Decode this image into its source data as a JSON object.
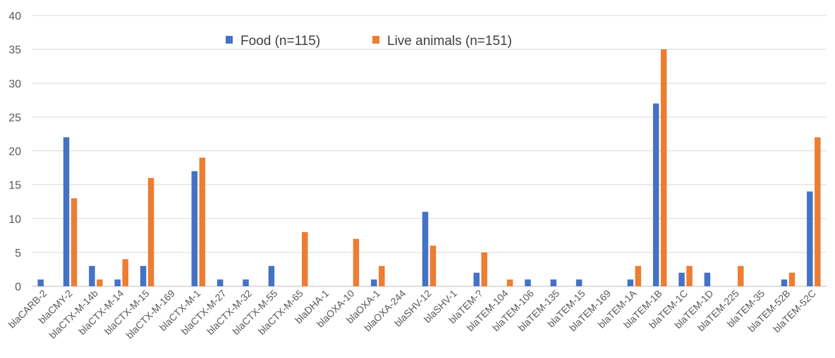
{
  "chart_data": {
    "type": "bar",
    "title": "",
    "xlabel": "",
    "ylabel": "",
    "ylim": [
      0,
      40
    ],
    "yticks": [
      0,
      5,
      10,
      15,
      20,
      25,
      30,
      35,
      40
    ],
    "grid": true,
    "legend_position": "top-center",
    "categories": [
      "blaCARB-2",
      "blaCMY-2",
      "blaCTX-M-14b",
      "blaCTX-M-14",
      "blaCTX-M-15",
      "blaCTX-M-169",
      "blaCTX-M-1",
      "blaCTX-M-27",
      "blaCTX-M-32",
      "blaCTX-M-55",
      "blaCTX-M-65",
      "blaDHA-1",
      "blaOXA-10",
      "blaOXA-1",
      "blaOXA-244",
      "blaSHV-12",
      "blaSHV-1",
      "blaTEM-?",
      "blaTEM-104",
      "blaTEM-106",
      "blaTEM-135",
      "blaTEM-15",
      "blaTEM-169",
      "blaTEM-1A",
      "blaTEM-1B",
      "blaTEM-1C",
      "blaTEM-1D",
      "blaTEM-225",
      "blaTEM-35",
      "blaTEM-52B",
      "blaTEM-52C"
    ],
    "series": [
      {
        "name": "Food (n=115)",
        "color": "#4472c4",
        "values": [
          1,
          22,
          3,
          1,
          3,
          0,
          17,
          1,
          1,
          3,
          0,
          0,
          0,
          1,
          0,
          11,
          0,
          2,
          0,
          1,
          1,
          1,
          0,
          1,
          27,
          2,
          2,
          0,
          0,
          1,
          14
        ]
      },
      {
        "name": "Live animals (n=151)",
        "color": "#ed7d31",
        "values": [
          0,
          13,
          1,
          4,
          16,
          0,
          19,
          0,
          0,
          0,
          8,
          0,
          7,
          3,
          0,
          6,
          0,
          5,
          1,
          0,
          0,
          0,
          0,
          3,
          35,
          3,
          0,
          3,
          0,
          2,
          22
        ]
      }
    ]
  }
}
